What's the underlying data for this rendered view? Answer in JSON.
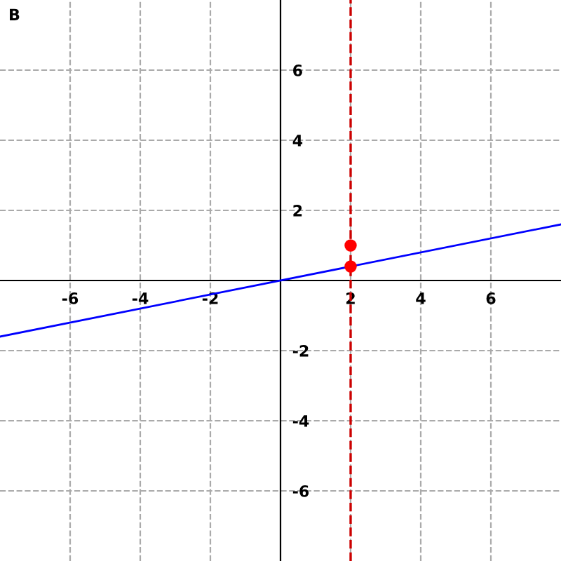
{
  "chart_data": {
    "type": "line",
    "title": "B",
    "series": [
      {
        "color": "#0000ff",
        "x": [
          -8,
          8
        ],
        "values": [
          -1.6,
          1.6
        ]
      },
      {
        "type": "scatter",
        "color": "#ff0000",
        "x": [
          2,
          2
        ],
        "values": [
          1,
          0.4
        ],
        "marker": "circle"
      }
    ],
    "ref_lines": [
      {
        "axis": "x",
        "value": 2,
        "color": "#cc0000",
        "line_style": "dashed"
      }
    ],
    "xlim": [
      -8,
      8
    ],
    "ylim": [
      -8,
      8
    ],
    "xticks": [
      -6,
      -4,
      -2,
      2,
      4,
      6
    ],
    "yticks": [
      -6,
      -4,
      -2,
      2,
      4,
      6
    ],
    "grid": true
  }
}
